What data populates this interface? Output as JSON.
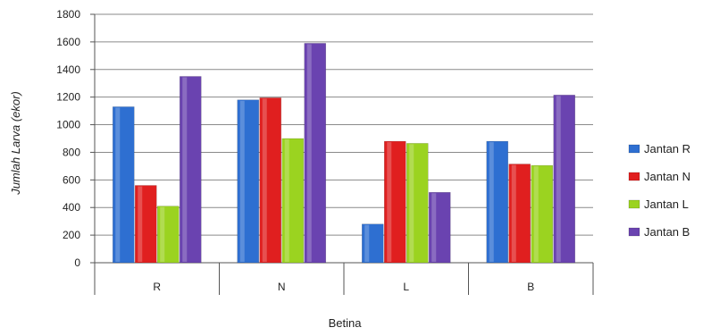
{
  "chart_data": {
    "type": "bar",
    "title": "",
    "xlabel": "Betina",
    "ylabel": "Jumlah Larva (ekor)",
    "ylim": [
      0,
      1800
    ],
    "yticks": [
      "0",
      "200",
      "400",
      "600",
      "800",
      "1000",
      "1200",
      "1400",
      "1600",
      "1800"
    ],
    "categories": [
      "R",
      "N",
      "L",
      "B"
    ],
    "grid": true,
    "legend_position": "right",
    "series": [
      {
        "name": "Jantan R",
        "color": "#2e6fd1",
        "values": [
          1130,
          1180,
          280,
          880
        ]
      },
      {
        "name": "Jantan N",
        "color": "#e01f1f",
        "values": [
          560,
          1195,
          880,
          715
        ]
      },
      {
        "name": "Jantan L",
        "color": "#9bd320",
        "values": [
          410,
          900,
          865,
          705
        ]
      },
      {
        "name": "Jantan B",
        "color": "#6a43b0",
        "values": [
          1350,
          1590,
          510,
          1215
        ]
      }
    ]
  }
}
